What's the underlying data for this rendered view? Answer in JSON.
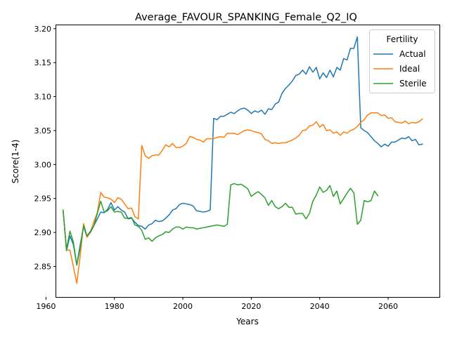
{
  "chart_data": {
    "type": "line",
    "title": "Average_FAVOUR_SPANKING_Female_Q2_IQ",
    "xlabel": "Years",
    "ylabel": "Score(1-4)",
    "xlim": [
      1963,
      2075
    ],
    "ylim": [
      2.805,
      3.205
    ],
    "x_ticks": [
      1960,
      1980,
      2000,
      2020,
      2040,
      2060
    ],
    "y_ticks": [
      2.85,
      2.9,
      2.95,
      3.0,
      3.05,
      3.1,
      3.15,
      3.2
    ],
    "x_tick_labels": [
      "1960",
      "1980",
      "2000",
      "2020",
      "2040",
      "2060"
    ],
    "y_tick_labels": [
      "2.85",
      "2.90",
      "2.95",
      "3.00",
      "3.05",
      "3.10",
      "3.15",
      "3.20"
    ],
    "grid": false,
    "legend": {
      "title": "Fertility",
      "placement": "top-right"
    },
    "series": [
      {
        "name": "Actual",
        "color": "#1f77b4",
        "points": [
          [
            1965,
            2.933
          ],
          [
            1966,
            2.873
          ],
          [
            1967,
            2.895
          ],
          [
            1968,
            2.882
          ],
          [
            1969,
            2.852
          ],
          [
            1970,
            2.882
          ],
          [
            1971,
            2.909
          ],
          [
            1972,
            2.893
          ],
          [
            1973,
            2.9
          ],
          [
            1974,
            2.91
          ],
          [
            1975,
            2.92
          ],
          [
            1976,
            2.93
          ],
          [
            1977,
            2.929
          ],
          [
            1978,
            2.934
          ],
          [
            1979,
            2.944
          ],
          [
            1980,
            2.933
          ],
          [
            1981,
            2.938
          ],
          [
            1982,
            2.933
          ],
          [
            1983,
            2.93
          ],
          [
            1984,
            2.92
          ],
          [
            1985,
            2.921
          ],
          [
            1986,
            2.915
          ],
          [
            1987,
            2.91
          ],
          [
            1988,
            2.909
          ],
          [
            1989,
            2.905
          ],
          [
            1990,
            2.911
          ],
          [
            1991,
            2.913
          ],
          [
            1992,
            2.918
          ],
          [
            1993,
            2.916
          ],
          [
            1994,
            2.917
          ],
          [
            1995,
            2.921
          ],
          [
            1996,
            2.926
          ],
          [
            1997,
            2.933
          ],
          [
            1998,
            2.935
          ],
          [
            1999,
            2.941
          ],
          [
            2000,
            2.943
          ],
          [
            2001,
            2.942
          ],
          [
            2002,
            2.941
          ],
          [
            2003,
            2.939
          ],
          [
            2004,
            2.932
          ],
          [
            2005,
            2.931
          ],
          [
            2006,
            2.93
          ],
          [
            2007,
            2.931
          ],
          [
            2008,
            2.933
          ],
          [
            2009,
            3.068
          ],
          [
            2010,
            3.066
          ],
          [
            2011,
            3.071
          ],
          [
            2012,
            3.071
          ],
          [
            2013,
            3.074
          ],
          [
            2014,
            3.077
          ],
          [
            2015,
            3.075
          ],
          [
            2016,
            3.079
          ],
          [
            2017,
            3.082
          ],
          [
            2018,
            3.083
          ],
          [
            2019,
            3.08
          ],
          [
            2020,
            3.075
          ],
          [
            2021,
            3.079
          ],
          [
            2022,
            3.077
          ],
          [
            2023,
            3.08
          ],
          [
            2024,
            3.074
          ],
          [
            2025,
            3.082
          ],
          [
            2026,
            3.081
          ],
          [
            2027,
            3.089
          ],
          [
            2028,
            3.092
          ],
          [
            2029,
            3.105
          ],
          [
            2030,
            3.112
          ],
          [
            2031,
            3.117
          ],
          [
            2032,
            3.123
          ],
          [
            2033,
            3.131
          ],
          [
            2034,
            3.133
          ],
          [
            2035,
            3.139
          ],
          [
            2036,
            3.133
          ],
          [
            2037,
            3.144
          ],
          [
            2038,
            3.136
          ],
          [
            2039,
            3.143
          ],
          [
            2040,
            3.126
          ],
          [
            2041,
            3.135
          ],
          [
            2042,
            3.128
          ],
          [
            2043,
            3.139
          ],
          [
            2044,
            3.129
          ],
          [
            2045,
            3.143
          ],
          [
            2046,
            3.139
          ],
          [
            2047,
            3.156
          ],
          [
            2048,
            3.154
          ],
          [
            2049,
            3.171
          ],
          [
            2050,
            3.171
          ],
          [
            2051,
            3.188
          ],
          [
            2052,
            3.054
          ],
          [
            2053,
            3.05
          ],
          [
            2054,
            3.047
          ],
          [
            2055,
            3.041
          ],
          [
            2056,
            3.035
          ],
          [
            2057,
            3.031
          ],
          [
            2058,
            3.026
          ],
          [
            2059,
            3.03
          ],
          [
            2060,
            3.027
          ],
          [
            2061,
            3.033
          ],
          [
            2062,
            3.033
          ],
          [
            2063,
            3.036
          ],
          [
            2064,
            3.039
          ],
          [
            2065,
            3.038
          ],
          [
            2066,
            3.041
          ],
          [
            2067,
            3.035
          ],
          [
            2068,
            3.037
          ],
          [
            2069,
            3.029
          ],
          [
            2070,
            3.03
          ]
        ]
      },
      {
        "name": "Ideal",
        "color": "#ff7f0e",
        "points": [
          [
            1965,
            2.933
          ],
          [
            1966,
            2.874
          ],
          [
            1967,
            2.874
          ],
          [
            1968,
            2.85
          ],
          [
            1969,
            2.825
          ],
          [
            1970,
            2.866
          ],
          [
            1971,
            2.913
          ],
          [
            1972,
            2.893
          ],
          [
            1973,
            2.901
          ],
          [
            1974,
            2.916
          ],
          [
            1975,
            2.929
          ],
          [
            1976,
            2.959
          ],
          [
            1977,
            2.952
          ],
          [
            1978,
            2.951
          ],
          [
            1979,
            2.949
          ],
          [
            1980,
            2.944
          ],
          [
            1981,
            2.951
          ],
          [
            1982,
            2.949
          ],
          [
            1983,
            2.942
          ],
          [
            1984,
            2.935
          ],
          [
            1985,
            2.936
          ],
          [
            1986,
            2.923
          ],
          [
            1987,
            2.92
          ],
          [
            1988,
            3.028
          ],
          [
            1989,
            3.013
          ],
          [
            1990,
            3.009
          ],
          [
            1991,
            3.013
          ],
          [
            1992,
            3.014
          ],
          [
            1993,
            3.014
          ],
          [
            1994,
            3.021
          ],
          [
            1995,
            3.029
          ],
          [
            1996,
            3.026
          ],
          [
            1997,
            3.031
          ],
          [
            1998,
            3.025
          ],
          [
            1999,
            3.025
          ],
          [
            2000,
            3.027
          ],
          [
            2001,
            3.031
          ],
          [
            2002,
            3.041
          ],
          [
            2003,
            3.04
          ],
          [
            2004,
            3.037
          ],
          [
            2005,
            3.036
          ],
          [
            2006,
            3.033
          ],
          [
            2007,
            3.038
          ],
          [
            2008,
            3.038
          ],
          [
            2009,
            3.038
          ],
          [
            2010,
            3.04
          ],
          [
            2011,
            3.041
          ],
          [
            2012,
            3.04
          ],
          [
            2013,
            3.046
          ],
          [
            2014,
            3.046
          ],
          [
            2015,
            3.046
          ],
          [
            2016,
            3.044
          ],
          [
            2017,
            3.047
          ],
          [
            2018,
            3.05
          ],
          [
            2019,
            3.051
          ],
          [
            2020,
            3.05
          ],
          [
            2021,
            3.048
          ],
          [
            2022,
            3.047
          ],
          [
            2023,
            3.045
          ],
          [
            2024,
            3.037
          ],
          [
            2025,
            3.035
          ],
          [
            2026,
            3.031
          ],
          [
            2027,
            3.032
          ],
          [
            2028,
            3.031
          ],
          [
            2029,
            3.032
          ],
          [
            2030,
            3.032
          ],
          [
            2031,
            3.034
          ],
          [
            2032,
            3.036
          ],
          [
            2033,
            3.039
          ],
          [
            2034,
            3.043
          ],
          [
            2035,
            3.05
          ],
          [
            2036,
            3.051
          ],
          [
            2037,
            3.057
          ],
          [
            2038,
            3.058
          ],
          [
            2039,
            3.063
          ],
          [
            2040,
            3.055
          ],
          [
            2041,
            3.059
          ],
          [
            2042,
            3.05
          ],
          [
            2043,
            3.051
          ],
          [
            2044,
            3.046
          ],
          [
            2045,
            3.048
          ],
          [
            2046,
            3.043
          ],
          [
            2047,
            3.048
          ],
          [
            2048,
            3.046
          ],
          [
            2049,
            3.05
          ],
          [
            2050,
            3.052
          ],
          [
            2051,
            3.056
          ],
          [
            2052,
            3.062
          ],
          [
            2053,
            3.066
          ],
          [
            2054,
            3.073
          ],
          [
            2055,
            3.076
          ],
          [
            2056,
            3.076
          ],
          [
            2057,
            3.076
          ],
          [
            2058,
            3.072
          ],
          [
            2059,
            3.073
          ],
          [
            2060,
            3.068
          ],
          [
            2061,
            3.069
          ],
          [
            2062,
            3.063
          ],
          [
            2063,
            3.062
          ],
          [
            2064,
            3.061
          ],
          [
            2065,
            3.064
          ],
          [
            2066,
            3.06
          ],
          [
            2067,
            3.062
          ],
          [
            2068,
            3.061
          ],
          [
            2069,
            3.063
          ],
          [
            2070,
            3.067
          ]
        ]
      },
      {
        "name": "Sterile",
        "color": "#2ca02c",
        "points": [
          [
            1965,
            2.933
          ],
          [
            1966,
            2.875
          ],
          [
            1967,
            2.902
          ],
          [
            1968,
            2.886
          ],
          [
            1969,
            2.852
          ],
          [
            1970,
            2.877
          ],
          [
            1971,
            2.91
          ],
          [
            1972,
            2.895
          ],
          [
            1973,
            2.902
          ],
          [
            1974,
            2.91
          ],
          [
            1975,
            2.928
          ],
          [
            1976,
            2.946
          ],
          [
            1977,
            2.93
          ],
          [
            1978,
            2.932
          ],
          [
            1979,
            2.938
          ],
          [
            1980,
            2.93
          ],
          [
            1981,
            2.931
          ],
          [
            1982,
            2.93
          ],
          [
            1983,
            2.921
          ],
          [
            1984,
            2.921
          ],
          [
            1985,
            2.922
          ],
          [
            1986,
            2.911
          ],
          [
            1987,
            2.909
          ],
          [
            1988,
            2.903
          ],
          [
            1989,
            2.89
          ],
          [
            1990,
            2.892
          ],
          [
            1991,
            2.887
          ],
          [
            1992,
            2.892
          ],
          [
            1993,
            2.895
          ],
          [
            1994,
            2.897
          ],
          [
            1995,
            2.901
          ],
          [
            1996,
            2.9
          ],
          [
            1997,
            2.905
          ],
          [
            1998,
            2.908
          ],
          [
            1999,
            2.908
          ],
          [
            2000,
            2.905
          ],
          [
            2001,
            2.908
          ],
          [
            2002,
            2.907
          ],
          [
            2003,
            2.907
          ],
          [
            2004,
            2.905
          ],
          [
            2005,
            2.906
          ],
          [
            2006,
            2.907
          ],
          [
            2007,
            2.908
          ],
          [
            2008,
            2.909
          ],
          [
            2009,
            2.91
          ],
          [
            2010,
            2.911
          ],
          [
            2011,
            2.91
          ],
          [
            2012,
            2.909
          ],
          [
            2013,
            2.912
          ],
          [
            2014,
            2.97
          ],
          [
            2015,
            2.972
          ],
          [
            2016,
            2.97
          ],
          [
            2017,
            2.971
          ],
          [
            2018,
            2.968
          ],
          [
            2019,
            2.964
          ],
          [
            2020,
            2.953
          ],
          [
            2021,
            2.957
          ],
          [
            2022,
            2.96
          ],
          [
            2023,
            2.956
          ],
          [
            2024,
            2.951
          ],
          [
            2025,
            2.94
          ],
          [
            2026,
            2.947
          ],
          [
            2027,
            2.938
          ],
          [
            2028,
            2.935
          ],
          [
            2029,
            2.938
          ],
          [
            2030,
            2.943
          ],
          [
            2031,
            2.937
          ],
          [
            2032,
            2.937
          ],
          [
            2033,
            2.927
          ],
          [
            2034,
            2.928
          ],
          [
            2035,
            2.928
          ],
          [
            2036,
            2.92
          ],
          [
            2037,
            2.928
          ],
          [
            2038,
            2.946
          ],
          [
            2039,
            2.955
          ],
          [
            2040,
            2.967
          ],
          [
            2041,
            2.959
          ],
          [
            2042,
            2.962
          ],
          [
            2043,
            2.969
          ],
          [
            2044,
            2.953
          ],
          [
            2045,
            2.961
          ],
          [
            2046,
            2.942
          ],
          [
            2047,
            2.95
          ],
          [
            2048,
            2.958
          ],
          [
            2049,
            2.965
          ],
          [
            2050,
            2.958
          ],
          [
            2051,
            2.912
          ],
          [
            2052,
            2.918
          ],
          [
            2053,
            2.947
          ],
          [
            2054,
            2.945
          ],
          [
            2055,
            2.947
          ],
          [
            2056,
            2.961
          ],
          [
            2057,
            2.954
          ]
        ]
      }
    ]
  }
}
